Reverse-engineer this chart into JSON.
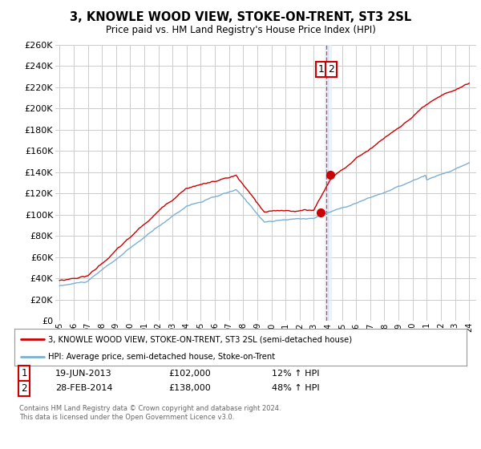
{
  "title": "3, KNOWLE WOOD VIEW, STOKE-ON-TRENT, ST3 2SL",
  "subtitle": "Price paid vs. HM Land Registry's House Price Index (HPI)",
  "ylim": [
    0,
    260000
  ],
  "yticks": [
    0,
    20000,
    40000,
    60000,
    80000,
    100000,
    120000,
    140000,
    160000,
    180000,
    200000,
    220000,
    240000,
    260000
  ],
  "background_color": "#ffffff",
  "grid_color": "#cccccc",
  "legend_label_red": "3, KNOWLE WOOD VIEW, STOKE-ON-TRENT, ST3 2SL (semi-detached house)",
  "legend_label_blue": "HPI: Average price, semi-detached house, Stoke-on-Trent",
  "transaction1_date": "19-JUN-2013",
  "transaction1_price": 102000,
  "transaction1_hpi_pct": "12%",
  "transaction1_x": 2013.46,
  "transaction2_date": "28-FEB-2014",
  "transaction2_price": 138000,
  "transaction2_hpi_pct": "48%",
  "transaction2_x": 2014.16,
  "dashed_line_x": 2013.9,
  "copyright_text": "Contains HM Land Registry data © Crown copyright and database right 2024.\nThis data is licensed under the Open Government Licence v3.0.",
  "red_line_color": "#cc0000",
  "blue_line_color": "#7bafd4"
}
